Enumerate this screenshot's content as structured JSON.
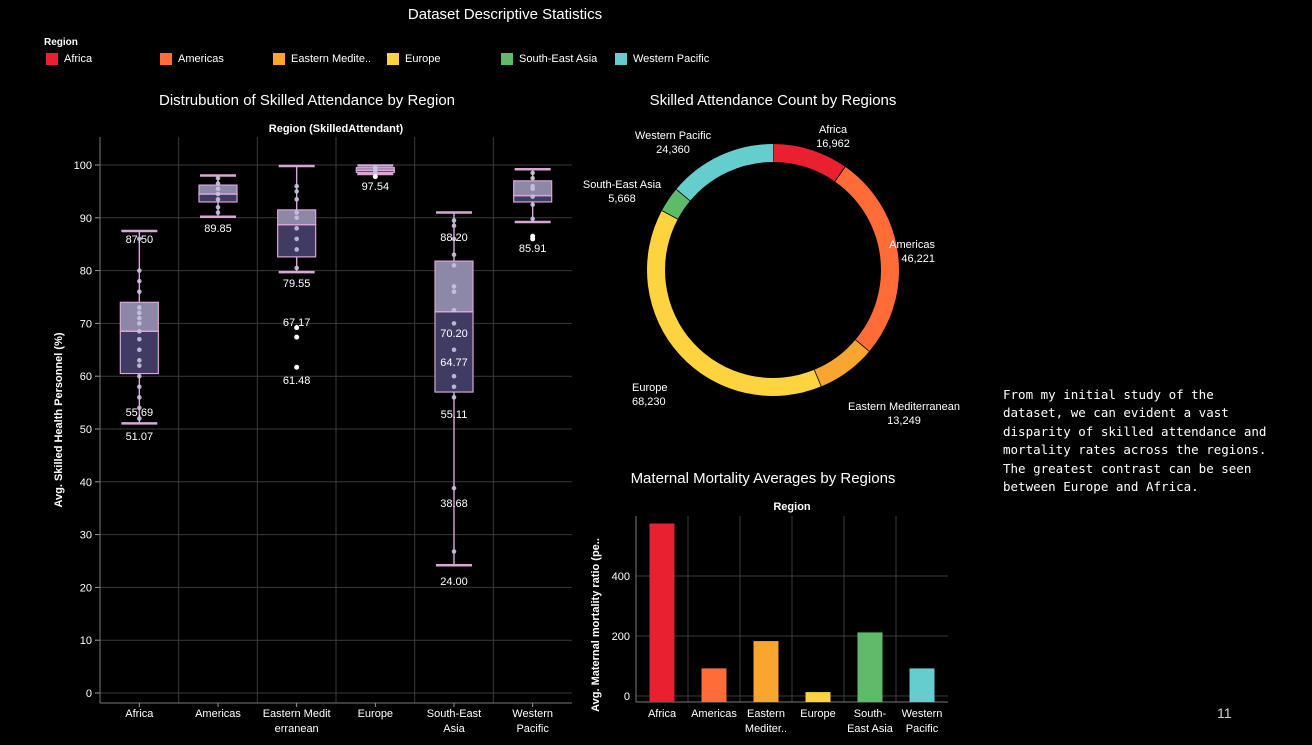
{
  "page": {
    "title": "Dataset Descriptive Statistics",
    "narrative": "From my initial study of the\ndataset, we can evident a vast\ndisparity of skilled attendance and\nmortality rates across the regions.\nThe greatest contrast can be seen\nbetween Europe and Africa.",
    "page_number": "11"
  },
  "legend": {
    "title": "Region",
    "items": [
      {
        "label": "Africa",
        "color": "#e8202f"
      },
      {
        "label": "Americas",
        "color": "#ff6c37"
      },
      {
        "label": "Eastern Medite..",
        "color": "#f9a630"
      },
      {
        "label": "Europe",
        "color": "#fdd33f"
      },
      {
        "label": "South-East Asia",
        "color": "#5fbb6a"
      },
      {
        "label": "Western Pacific",
        "color": "#65cdcd"
      }
    ]
  },
  "chart_data": [
    {
      "type": "box",
      "title": "Distrubution of Skilled Attendance by Region",
      "header": "Region (SkilledAttendant)",
      "ylabel": "Avg. Skilled Health Personnel (%)",
      "ylim": [
        0,
        100
      ],
      "yticks": [
        0,
        10,
        20,
        30,
        40,
        50,
        60,
        70,
        80,
        90,
        100
      ],
      "grid": true,
      "categories": [
        {
          "label": [
            "Africa"
          ],
          "whisker_low": 51.07,
          "q1": 60.5,
          "median": 68.5,
          "q3": 74.0,
          "whisker_high": 87.5,
          "points": [
            52,
            54,
            56,
            58,
            60,
            62,
            63,
            65,
            67,
            68.5,
            70,
            71,
            72,
            73,
            76,
            78,
            80,
            86
          ],
          "outliers": [],
          "labels": [
            "87.50",
            "55.69",
            "51.07"
          ]
        },
        {
          "label": [
            "Americas"
          ],
          "whisker_low": 90.2,
          "q1": 93.0,
          "median": 94.5,
          "q3": 96.2,
          "whisker_high": 98.0,
          "points": [
            91,
            92,
            93.5,
            94.5,
            95.5,
            96.5,
            97.5
          ],
          "outliers": [],
          "labels": [
            "89.85"
          ]
        },
        {
          "label": [
            "Eastern Medit",
            "erranean"
          ],
          "whisker_low": 79.7,
          "q1": 82.6,
          "median": 88.7,
          "q3": 91.5,
          "whisker_high": 99.8,
          "points": [
            80.5,
            84,
            86,
            88,
            90,
            91,
            93.5,
            95,
            96
          ],
          "outliers": [
            69.2,
            67.4,
            61.7
          ],
          "labels": [
            "79.55",
            "67.17",
            "61.48"
          ]
        },
        {
          "label": [
            "Europe"
          ],
          "whisker_low": 98.3,
          "q1": 98.6,
          "median": 99.0,
          "q3": 99.5,
          "whisker_high": 99.9,
          "points": [
            98.6,
            99,
            99.3,
            99.6
          ],
          "outliers": [
            97.8
          ],
          "labels": [
            "97.54"
          ]
        },
        {
          "label": [
            "South-East",
            "Asia"
          ],
          "whisker_low": 24.2,
          "q1": 57.0,
          "median": 72.2,
          "q3": 81.8,
          "whisker_high": 91.0,
          "points": [
            26.8,
            38.8,
            56,
            58,
            60,
            65,
            70,
            72.5,
            76,
            77,
            81,
            83,
            86,
            88.5,
            89.5
          ],
          "outliers": [],
          "labels": [
            "88.20",
            "70.20",
            "64.77",
            "55.11",
            "38.68",
            "24.00"
          ]
        },
        {
          "label": [
            "Western",
            "Pacific"
          ],
          "whisker_low": 89.2,
          "q1": 93.0,
          "median": 94.2,
          "q3": 97.0,
          "whisker_high": 99.2,
          "points": [
            89.8,
            92.5,
            94,
            95.5,
            96,
            97.5,
            98.5
          ],
          "outliers": [
            86.5,
            86.0
          ],
          "labels": [
            "85.91"
          ]
        }
      ]
    },
    {
      "type": "pie",
      "title": "Skilled Attendance Count by Regions",
      "slices": [
        {
          "label": "Africa",
          "value": 16962,
          "display": "16,962",
          "color": "#e8202f"
        },
        {
          "label": "Americas",
          "value": 46221,
          "display": "46,221",
          "color": "#ff6c37"
        },
        {
          "label": "Eastern Mediterranean",
          "value": 13249,
          "display": "13,249",
          "color": "#f9a630"
        },
        {
          "label": "Europe",
          "value": 68230,
          "display": "68,230",
          "color": "#fdd33f"
        },
        {
          "label": "South-East Asia",
          "value": 5668,
          "display": "5,668",
          "color": "#5fbb6a"
        },
        {
          "label": "Western Pacific",
          "value": 24360,
          "display": "24,360",
          "color": "#65cdcd"
        }
      ]
    },
    {
      "type": "bar",
      "title": "Maternal Mortality Averages by Regions",
      "header": "Region",
      "ylabel": "Avg. Maternal mortality ratio (pe..",
      "ylim": [
        0,
        600
      ],
      "yticks": [
        0,
        200,
        400
      ],
      "grid": true,
      "categories": [
        [
          "Africa"
        ],
        [
          "Americas"
        ],
        [
          "Eastern",
          "Mediter.."
        ],
        [
          "Europe"
        ],
        [
          "South-",
          "East Asia"
        ],
        [
          "Western",
          "Pacific"
        ]
      ],
      "values": [
        575,
        92,
        183,
        13,
        212,
        92
      ],
      "colors": [
        "#e8202f",
        "#ff6c37",
        "#f9a630",
        "#fdd33f",
        "#5fbb6a",
        "#65cdcd"
      ]
    }
  ]
}
